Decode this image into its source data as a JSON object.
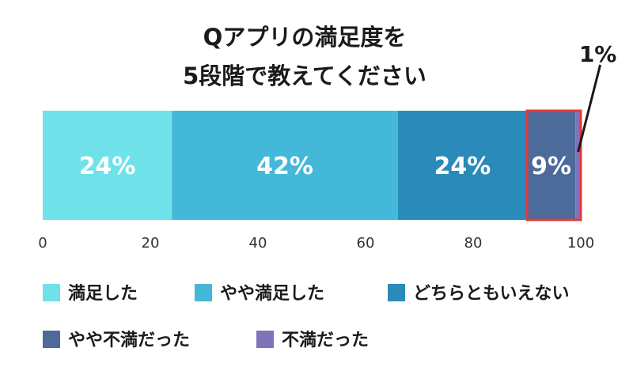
{
  "chart_data": {
    "type": "bar",
    "orientation": "horizontal-stacked",
    "title_lines": [
      "Qアプリの満足度を",
      "5段階で教えてください"
    ],
    "xlim": [
      0,
      100
    ],
    "xticks": [
      0,
      20,
      40,
      60,
      80,
      100
    ],
    "series": [
      {
        "name": "満足した",
        "value": 24,
        "label": "24%",
        "color": "#6ee2e8"
      },
      {
        "name": "やや満足した",
        "value": 42,
        "label": "42%",
        "color": "#43b8d8"
      },
      {
        "name": "どちらともいえない",
        "value": 24,
        "label": "24%",
        "color": "#2a8bbb"
      },
      {
        "name": "やや不満だった",
        "value": 9,
        "label": "9%",
        "color": "#4c6a9a"
      },
      {
        "name": "不満だった",
        "value": 1,
        "label": "1%",
        "color": "#8073b8"
      }
    ],
    "highlight": {
      "series": [
        "やや不満だった",
        "不満だった"
      ],
      "color": "#e53935"
    },
    "grid": false,
    "legend_position": "bottom"
  }
}
